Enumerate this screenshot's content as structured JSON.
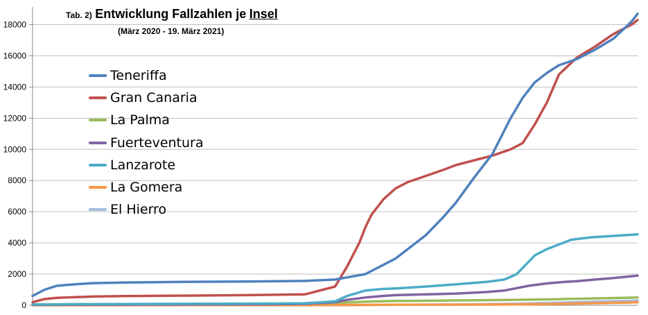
{
  "chart_data": {
    "type": "line",
    "title_prefix": "Tab. 2)",
    "title_main": "Entwicklung Fallzahlen je",
    "title_underlined": "Insel",
    "subtitle": "(März 2020 - 19. März 2021)",
    "xlabel": "",
    "ylabel": "",
    "ylim": [
      0,
      18500
    ],
    "yticks": [
      "0",
      "2000",
      "4000",
      "6000",
      "8000",
      "10000",
      "12000",
      "14000",
      "16000",
      "18000"
    ],
    "ytick_values": [
      0,
      2000,
      4000,
      6000,
      8000,
      10000,
      12000,
      14000,
      16000,
      18000
    ],
    "x_range": [
      0,
      100
    ],
    "grid": true,
    "legend_position": "upper-left",
    "series": [
      {
        "name": "Teneriffa",
        "color": "#4f81bd",
        "x": [
          0,
          2,
          4,
          7,
          10,
          15,
          25,
          35,
          45,
          50,
          55,
          60,
          62,
          65,
          68,
          70,
          73,
          76,
          79,
          81,
          83,
          85,
          87,
          90,
          93,
          96,
          99,
          100
        ],
        "y": [
          600,
          1000,
          1250,
          1350,
          1420,
          1460,
          1500,
          1520,
          1560,
          1650,
          2000,
          3000,
          3600,
          4500,
          5700,
          6600,
          8200,
          9700,
          12000,
          13300,
          14300,
          14900,
          15400,
          15800,
          16400,
          17100,
          18200,
          18700
        ]
      },
      {
        "name": "Gran Canaria",
        "color": "#c0504d",
        "x": [
          0,
          2,
          4,
          7,
          10,
          15,
          25,
          35,
          45,
          50,
          52,
          54,
          55,
          56,
          58,
          60,
          62,
          65,
          68,
          70,
          73,
          76,
          79,
          81,
          83,
          85,
          87,
          90,
          93,
          96,
          99,
          100
        ],
        "y": [
          200,
          400,
          480,
          520,
          560,
          590,
          620,
          650,
          700,
          1200,
          2500,
          4000,
          5000,
          5800,
          6800,
          7500,
          7900,
          8300,
          8700,
          9000,
          9300,
          9600,
          10000,
          10400,
          11600,
          13000,
          14800,
          15900,
          16600,
          17400,
          18000,
          18300
        ]
      },
      {
        "name": "La Palma",
        "color": "#9bbb59",
        "x": [
          0,
          10,
          20,
          30,
          40,
          50,
          55,
          60,
          65,
          70,
          75,
          80,
          85,
          90,
          95,
          100
        ],
        "y": [
          60,
          70,
          80,
          90,
          100,
          150,
          230,
          280,
          290,
          310,
          330,
          350,
          380,
          420,
          460,
          500
        ]
      },
      {
        "name": "Fuerteventura",
        "color": "#8064a2",
        "x": [
          0,
          10,
          20,
          30,
          40,
          45,
          50,
          52,
          55,
          58,
          60,
          65,
          70,
          75,
          78,
          80,
          82,
          85,
          88,
          90,
          93,
          96,
          100
        ],
        "y": [
          30,
          40,
          50,
          60,
          70,
          90,
          200,
          350,
          500,
          600,
          650,
          700,
          750,
          850,
          950,
          1100,
          1250,
          1400,
          1500,
          1550,
          1650,
          1750,
          1900
        ]
      },
      {
        "name": "Lanzarote",
        "color": "#4bacc6",
        "x": [
          0,
          10,
          20,
          30,
          40,
          45,
          50,
          52,
          55,
          58,
          60,
          65,
          70,
          75,
          78,
          80,
          81,
          82,
          83,
          85,
          87,
          89,
          92,
          96,
          100
        ],
        "y": [
          50,
          70,
          90,
          100,
          110,
          130,
          250,
          600,
          950,
          1050,
          1080,
          1200,
          1350,
          1500,
          1650,
          2000,
          2400,
          2800,
          3200,
          3600,
          3900,
          4200,
          4350,
          4450,
          4550
        ]
      },
      {
        "name": "La Gomera",
        "color": "#f79646",
        "x": [
          0,
          20,
          40,
          50,
          60,
          70,
          80,
          85,
          90,
          95,
          100
        ],
        "y": [
          5,
          10,
          15,
          20,
          30,
          40,
          60,
          80,
          110,
          150,
          190
        ]
      },
      {
        "name": "El Hierro",
        "color": "#a5b9db",
        "x": [
          0,
          20,
          40,
          50,
          60,
          70,
          80,
          85,
          90,
          95,
          100
        ],
        "y": [
          5,
          8,
          10,
          15,
          30,
          50,
          100,
          150,
          200,
          250,
          300
        ]
      }
    ]
  }
}
